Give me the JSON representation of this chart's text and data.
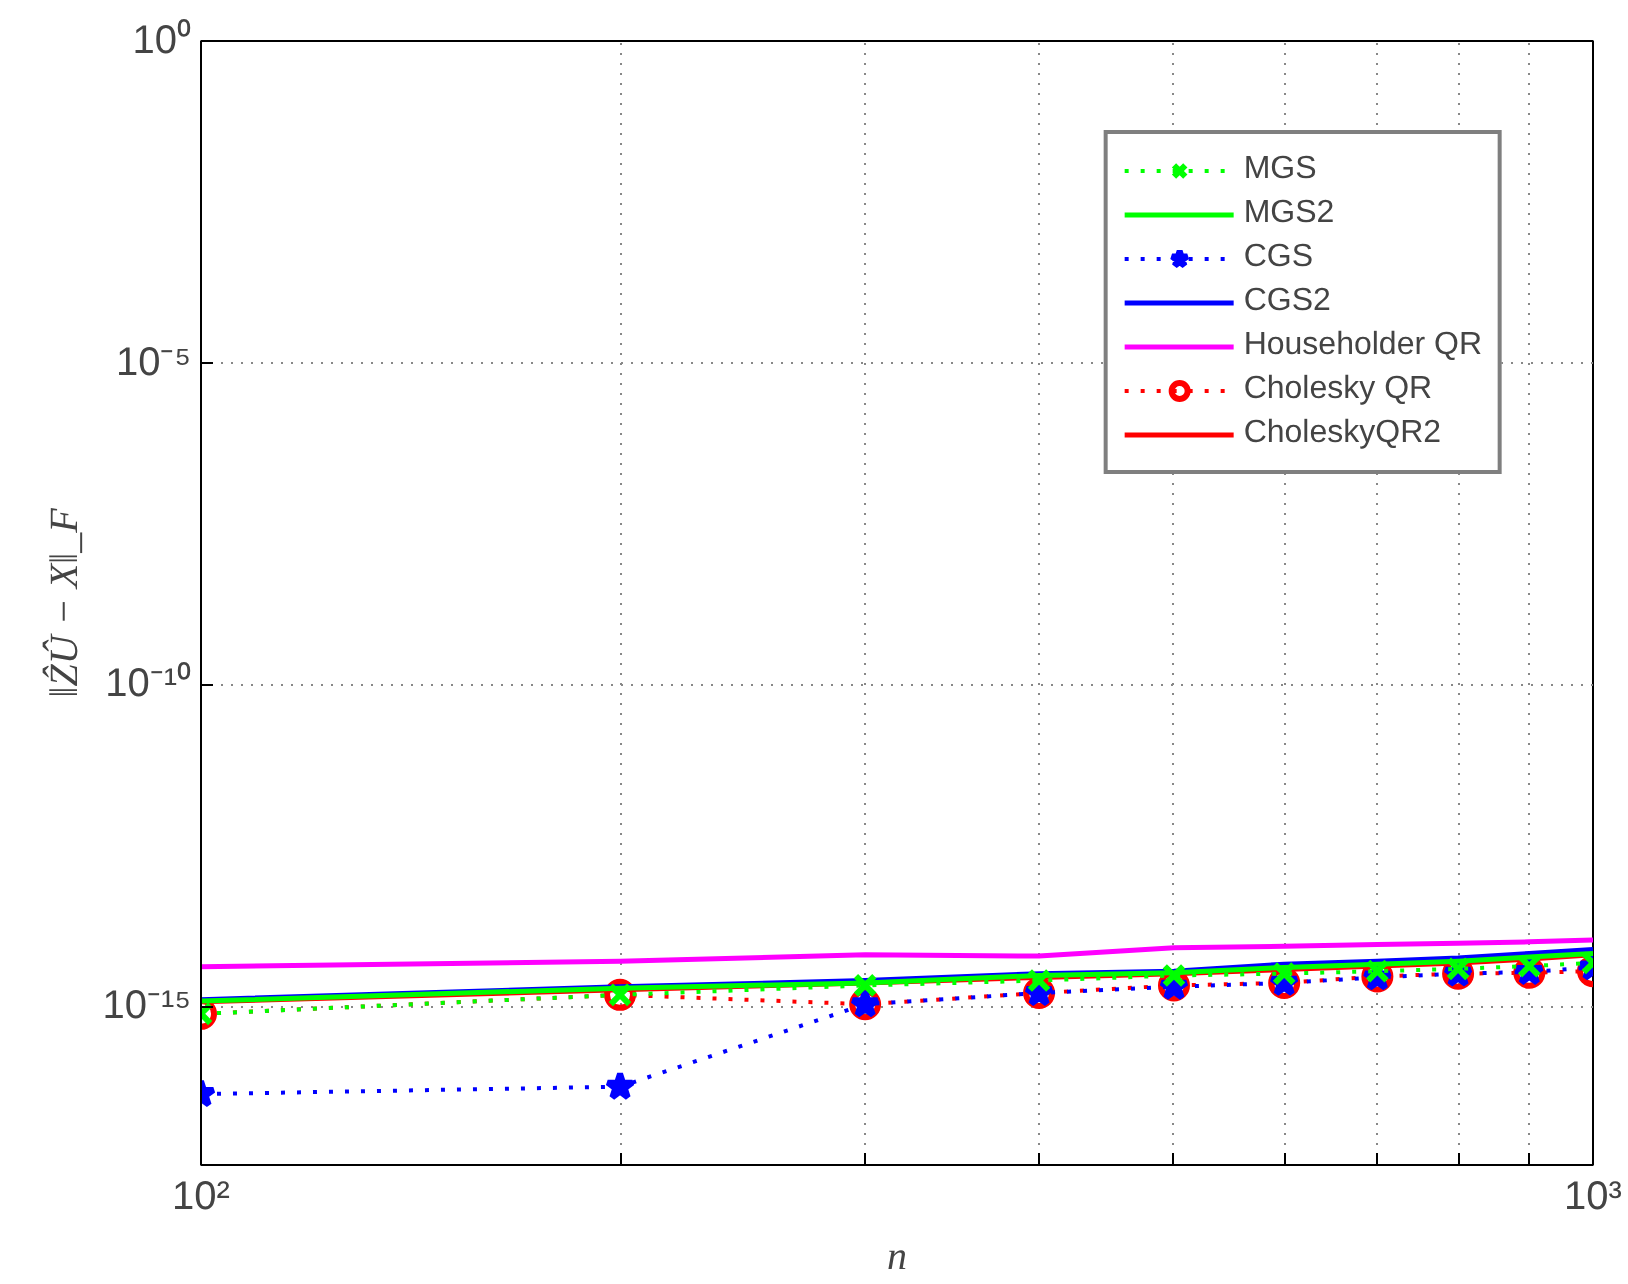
{
  "chart_data": {
    "type": "line",
    "xlabel": "n",
    "ylabel": "‖ẐÛ − X‖_F",
    "log": "xy",
    "grid": true,
    "legend": "top right",
    "x": [
      100,
      200,
      300,
      400,
      500,
      600,
      700,
      800,
      900,
      1000
    ],
    "xlim": [
      100,
      1000
    ],
    "xticks": [
      {
        "value": 100,
        "label": "10²"
      },
      {
        "value": 200,
        "label": null
      },
      {
        "value": 300,
        "label": null
      },
      {
        "value": 400,
        "label": null
      },
      {
        "value": 500,
        "label": null
      },
      {
        "value": 600,
        "label": null
      },
      {
        "value": 700,
        "label": null
      },
      {
        "value": 800,
        "label": null
      },
      {
        "value": 900,
        "label": null
      },
      {
        "value": 1000,
        "label": "10³"
      }
    ],
    "ylim": [
      3.4e-18,
      1
    ],
    "yticks": [
      {
        "value": 1e-15,
        "label": "10⁻¹⁵"
      },
      {
        "value": 1e-10,
        "label": "10⁻¹⁰"
      },
      {
        "value": 1e-05,
        "label": "10⁻⁵"
      },
      {
        "value": 1,
        "label": "10⁰"
      }
    ],
    "series": [
      {
        "name": "MGS",
        "color": "#00ff00",
        "line_style": "dotted",
        "marker": "cross",
        "values": [
          7.6e-16,
          1.5e-15,
          2.1e-15,
          2.5e-15,
          3e-15,
          3.2e-15,
          3.5e-15,
          3.8e-15,
          4.2e-15,
          4.7e-15
        ]
      },
      {
        "name": "MGS2",
        "color": "#00ff00",
        "line_style": "solid",
        "marker": "none",
        "values": [
          1.2e-15,
          1.9e-15,
          2.3e-15,
          3e-15,
          3.3e-15,
          4e-15,
          4.5e-15,
          5e-15,
          5.8e-15,
          6.6e-15
        ]
      },
      {
        "name": "CGS",
        "color": "#0000ff",
        "line_style": "dotted",
        "marker": "star",
        "values": [
          4.3e-17,
          5.6e-17,
          1.07e-15,
          1.6e-15,
          2e-15,
          2.3e-15,
          2.8e-15,
          3.2e-15,
          3.4e-15,
          4e-15
        ]
      },
      {
        "name": "CGS2",
        "color": "#0000ff",
        "line_style": "solid",
        "marker": "none",
        "values": [
          1.26e-15,
          2e-15,
          2.5e-15,
          3.2e-15,
          3.5e-15,
          4.5e-15,
          5e-15,
          5.6e-15,
          6.6e-15,
          7.6e-15
        ]
      },
      {
        "name": "Householder QR",
        "color": "#ff00ff",
        "line_style": "solid",
        "marker": "none",
        "values": [
          4.1e-15,
          5e-15,
          6.3e-15,
          6e-15,
          8.1e-15,
          8.5e-15,
          9.1e-15,
          9.5e-15,
          1e-14,
          1.07e-14
        ]
      },
      {
        "name": "Cholesky QR",
        "color": "#ff0000",
        "line_style": "dotted",
        "marker": "circle",
        "values": [
          7.6e-16,
          1.5e-15,
          1.07e-15,
          1.6e-15,
          2.1e-15,
          2.3e-15,
          2.9e-15,
          3.2e-15,
          3.3e-15,
          3.5e-15
        ]
      },
      {
        "name": "CholeskyQR2",
        "color": "#ff0000",
        "line_style": "solid",
        "marker": "none",
        "values": [
          1.17e-15,
          1.8e-15,
          2.3e-15,
          2.8e-15,
          3.2e-15,
          3.7e-15,
          4.2e-15,
          4.7e-15,
          5.4e-15,
          6.3e-15
        ]
      }
    ]
  }
}
